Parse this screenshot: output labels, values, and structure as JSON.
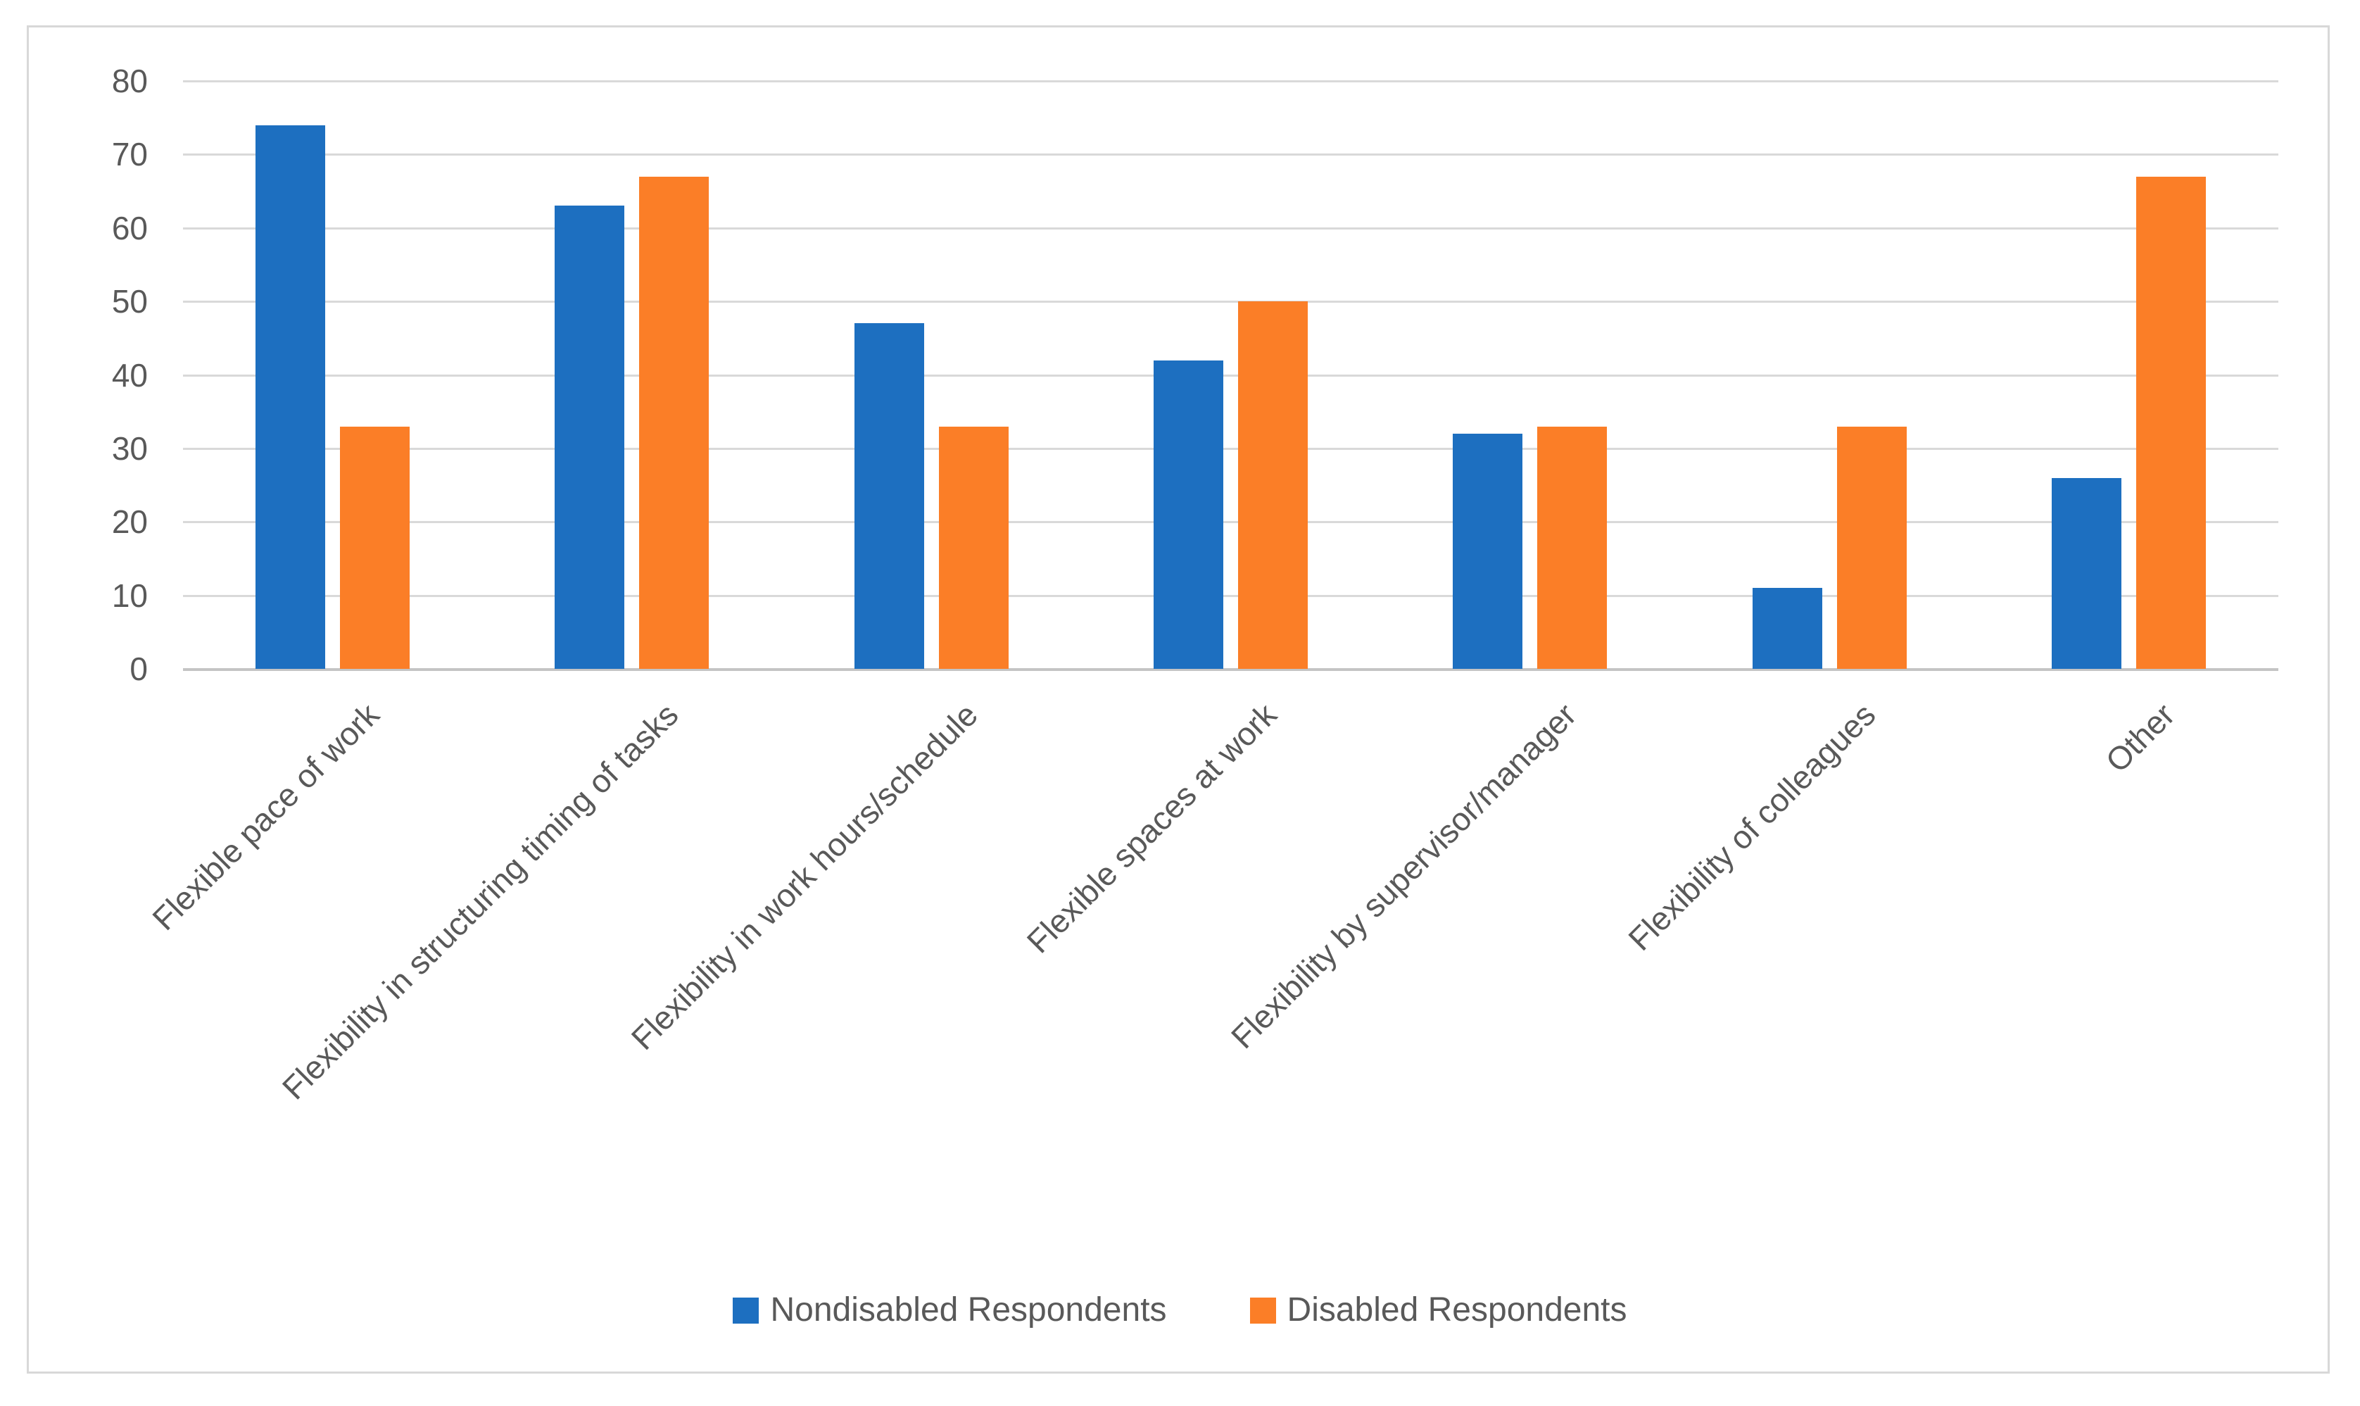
{
  "figure": {
    "background_color": "#ffffff",
    "border_color": "#d8d8d8",
    "title": ""
  },
  "chart_data": {
    "type": "bar",
    "title": "",
    "xlabel": "",
    "ylabel": "",
    "categories": [
      "Flexible pace of work",
      "Flexibility in structuring timing of tasks",
      "Flexibility in work hours/schedule",
      "Flexible spaces at work",
      "Flexibility by supervisor/manager",
      "Flexibility of colleagues",
      "Other"
    ],
    "series": [
      {
        "name": "Nondisabled Respondents",
        "color": "#1d6fc0",
        "values": [
          74,
          63,
          47,
          42,
          32,
          11,
          26
        ]
      },
      {
        "name": "Disabled Respondents",
        "color": "#fb7e27",
        "values": [
          33,
          67,
          33,
          50,
          33,
          33,
          67
        ]
      }
    ],
    "ylim": [
      0,
      80
    ],
    "yticks": [
      0,
      10,
      20,
      30,
      40,
      50,
      60,
      70,
      80
    ],
    "grid": "horizontal",
    "gridline_color": "#d9d9d9",
    "zero_line_color": "#c4c4c4",
    "tick_label_color": "#595959",
    "legend_position": "bottom",
    "category_label_rotation_deg": 45
  }
}
